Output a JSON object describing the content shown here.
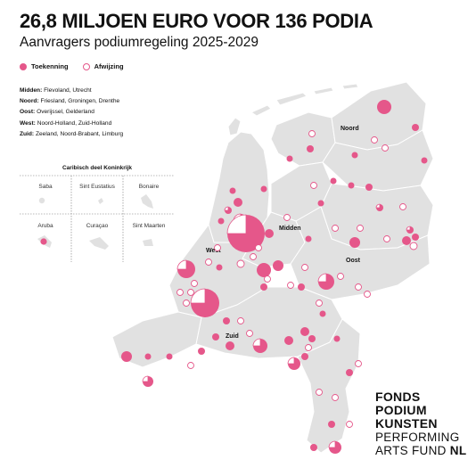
{
  "title": "26,8 MILJOEN EURO VOOR 136 PODIA",
  "subtitle": "Aanvragers podiumregeling 2025-2029",
  "legend": {
    "granted": "Toekenning",
    "rejected": "Afwijzing"
  },
  "colors": {
    "accent": "#e5578a",
    "land": "#e1e1e1",
    "border": "#ffffff"
  },
  "regions": [
    {
      "name": "Midden:",
      "provinces": "Flevoland, Utrecht"
    },
    {
      "name": "Noord:",
      "provinces": "Friesland, Groningen, Drenthe"
    },
    {
      "name": "Oost:",
      "provinces": "Overijssel, Gelderland"
    },
    {
      "name": "West:",
      "provinces": "Noord-Holland, Zuid-Holland"
    },
    {
      "name": "Zuid:",
      "provinces": "Zeeland, Noord-Brabant, Limburg"
    }
  ],
  "map_labels": {
    "noord": "Noord",
    "midden": "Midden",
    "west": "West",
    "oost": "Oost",
    "zuid": "Zuid"
  },
  "caribbean": {
    "title": "Caribisch deel Koninkrijk",
    "islands": [
      "Saba",
      "Sint Eustatius",
      "Bonaire",
      "Aruba",
      "Curaçao",
      "Sint Maarten"
    ]
  },
  "logo": {
    "line1": "FONDS",
    "line2": "PODIUM",
    "line3": "KUNSTEN",
    "line4": "PERFORMING",
    "line5a": "ARTS FUND ",
    "line5b": "NL"
  }
}
